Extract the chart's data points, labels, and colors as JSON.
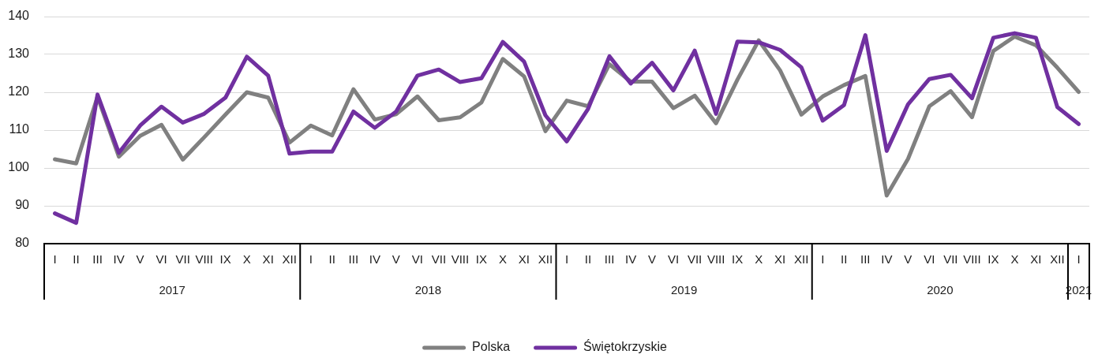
{
  "chart_data": {
    "type": "line",
    "categories": [
      "I",
      "II",
      "III",
      "IV",
      "V",
      "VI",
      "VII",
      "VIII",
      "IX",
      "X",
      "XI",
      "XII",
      "I",
      "II",
      "III",
      "IV",
      "V",
      "VI",
      "VII",
      "VIII",
      "IX",
      "X",
      "XI",
      "XII",
      "I",
      "II",
      "III",
      "IV",
      "V",
      "VI",
      "VII",
      "VIII",
      "IX",
      "X",
      "XI",
      "XII",
      "I",
      "II",
      "III",
      "IV",
      "V",
      "VI",
      "VII",
      "VIII",
      "IX",
      "X",
      "XI",
      "XII",
      "I"
    ],
    "series": [
      {
        "name": "Polska",
        "color": "#808080",
        "values": [
          102.3,
          101.2,
          118.8,
          103.0,
          108.5,
          111.4,
          102.2,
          108.1,
          114.1,
          120.0,
          118.6,
          106.7,
          111.2,
          108.6,
          120.8,
          112.8,
          114.2,
          118.9,
          112.6,
          113.4,
          117.3,
          128.8,
          124.2,
          109.7,
          117.8,
          116.3,
          127.4,
          122.8,
          122.8,
          115.8,
          119.1,
          111.8,
          123.3,
          133.7,
          125.8,
          114.1,
          118.9,
          121.9,
          124.3,
          92.7,
          102.4,
          116.3,
          120.3,
          113.4,
          130.9,
          134.7,
          132.4,
          126.5,
          120.1
        ]
      },
      {
        "name": "Świętokrzyskie",
        "color": "#7030a0",
        "values": [
          88.0,
          85.5,
          119.4,
          104.0,
          111.2,
          116.2,
          112.0,
          114.3,
          118.6,
          129.4,
          124.4,
          103.8,
          104.3,
          104.3,
          114.9,
          110.6,
          114.9,
          124.4,
          126.0,
          122.7,
          123.7,
          133.3,
          128.1,
          113.9,
          107.0,
          115.6,
          129.5,
          122.3,
          127.8,
          120.5,
          131.0,
          114.3,
          133.4,
          133.2,
          131.2,
          126.6,
          112.5,
          116.6,
          135.1,
          104.5,
          116.8,
          123.5,
          124.6,
          118.4,
          134.4,
          135.6,
          134.4,
          116.1,
          111.6
        ]
      }
    ],
    "ylim": [
      80,
      140
    ],
    "yticks": [
      80,
      90,
      100,
      110,
      120,
      130,
      140
    ],
    "grid": "y",
    "legend": "bottom",
    "line_style": "solid",
    "annotations": [
      "2017",
      "2018",
      "2019",
      "2020",
      "2021"
    ]
  }
}
